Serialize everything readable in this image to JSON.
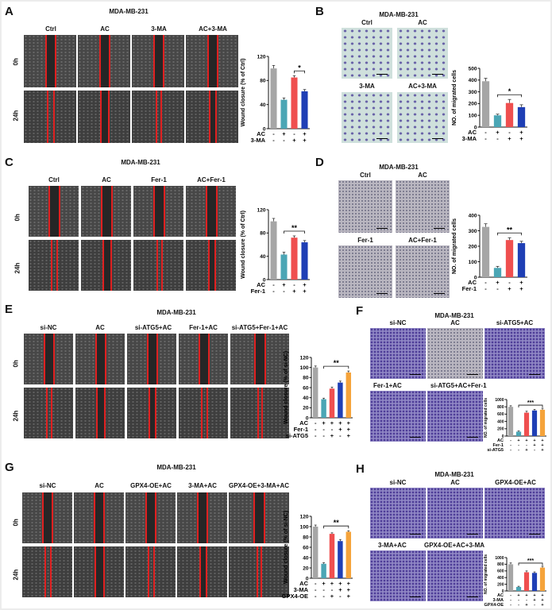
{
  "line_label": "MDA-MB-231",
  "row_labels": {
    "t0": "0h",
    "t24": "24h"
  },
  "panels": {
    "A": {
      "letter": "A",
      "headers": [
        "Ctrl",
        "AC",
        "3-MA",
        "AC+3-MA"
      ]
    },
    "B": {
      "letter": "B",
      "headers": [
        "Ctrl",
        "AC",
        "3-MA",
        "AC+3-MA"
      ]
    },
    "C": {
      "letter": "C",
      "headers": [
        "Ctrl",
        "AC",
        "Fer-1",
        "AC+Fer-1"
      ]
    },
    "D": {
      "letter": "D",
      "headers": [
        "Ctrl",
        "AC",
        "Fer-1",
        "AC+Fer-1"
      ]
    },
    "E": {
      "letter": "E",
      "headers": [
        "si-NC",
        "AC",
        "si-ATG5+AC",
        "Fer-1+AC",
        "si-ATG5+Fer-1+AC"
      ]
    },
    "F": {
      "letter": "F",
      "headers": [
        "si-NC",
        "AC",
        "si-ATG5+AC",
        "Fer-1+AC",
        "si-ATG5+AC+Fer-1"
      ]
    },
    "G": {
      "letter": "G",
      "headers": [
        "si-NC",
        "AC",
        "GPX4-OE+AC",
        "3-MA+AC",
        "GPX4-OE+3-MA+AC"
      ]
    },
    "H": {
      "letter": "H",
      "headers": [
        "si-NC",
        "AC",
        "GPX4-OE+AC",
        "3-MA+AC",
        "GPX4-OE+AC+3-MA"
      ]
    }
  },
  "chart_data": [
    {
      "id": "A",
      "type": "bar",
      "ylabel": "Wound closure (% of Ctrl)",
      "ylim": [
        0,
        120
      ],
      "yticks": [
        0,
        40,
        80,
        120
      ],
      "values": [
        100,
        48,
        85,
        62
      ],
      "errors": [
        5,
        3,
        3,
        3
      ],
      "colors": [
        "#a6a6a6",
        "#4ba6b5",
        "#ef4f4f",
        "#1f3fb5"
      ],
      "treatments": [
        {
          "label": "AC",
          "signs": [
            "-",
            "+",
            "-",
            "+"
          ]
        },
        {
          "label": "3-MA",
          "signs": [
            "-",
            "-",
            "+",
            "+"
          ]
        }
      ],
      "sig": {
        "from": 2,
        "to": 3,
        "label": "*"
      }
    },
    {
      "id": "B",
      "type": "bar",
      "ylabel": "NO. of migrated cells",
      "ylim": [
        0,
        500
      ],
      "yticks": [
        0,
        100,
        200,
        300,
        400,
        500
      ],
      "values": [
        390,
        100,
        205,
        170
      ],
      "errors": [
        25,
        10,
        30,
        20
      ],
      "colors": [
        "#a6a6a6",
        "#4ba6b5",
        "#ef4f4f",
        "#1f3fb5"
      ],
      "treatments": [
        {
          "label": "AC",
          "signs": [
            "-",
            "+",
            "-",
            "+"
          ]
        },
        {
          "label": "3-MA",
          "signs": [
            "-",
            "-",
            "+",
            "+"
          ]
        }
      ],
      "sig": {
        "from": 1,
        "to": 3,
        "label": "*"
      }
    },
    {
      "id": "C",
      "type": "bar",
      "ylabel": "Wound closure (% of Ctrl)",
      "ylim": [
        0,
        120
      ],
      "yticks": [
        0,
        40,
        80,
        120
      ],
      "values": [
        100,
        43,
        72,
        64
      ],
      "errors": [
        5,
        4,
        3,
        3
      ],
      "colors": [
        "#a6a6a6",
        "#4ba6b5",
        "#ef4f4f",
        "#1f3fb5"
      ],
      "treatments": [
        {
          "label": "AC",
          "signs": [
            "-",
            "+",
            "-",
            "+"
          ]
        },
        {
          "label": "Fer-1",
          "signs": [
            "-",
            "-",
            "+",
            "+"
          ]
        }
      ],
      "sig": {
        "from": 1,
        "to": 3,
        "label": "**"
      }
    },
    {
      "id": "D",
      "type": "bar",
      "ylabel": "NO. of migrated cells",
      "ylim": [
        0,
        400
      ],
      "yticks": [
        0,
        100,
        200,
        300,
        400
      ],
      "values": [
        325,
        60,
        240,
        220
      ],
      "errors": [
        20,
        10,
        15,
        12
      ],
      "colors": [
        "#a6a6a6",
        "#4ba6b5",
        "#ef4f4f",
        "#1f3fb5"
      ],
      "treatments": [
        {
          "label": "AC",
          "signs": [
            "-",
            "+",
            "-",
            "+"
          ]
        },
        {
          "label": "Fer-1",
          "signs": [
            "-",
            "-",
            "+",
            "+"
          ]
        }
      ],
      "sig": {
        "from": 1,
        "to": 3,
        "label": "**"
      }
    },
    {
      "id": "E",
      "type": "bar",
      "ylabel": "Wound closure (% of si-NC)",
      "ylim": [
        0,
        120
      ],
      "yticks": [
        0,
        20,
        40,
        60,
        80,
        100,
        120
      ],
      "values": [
        100,
        37,
        58,
        70,
        90
      ],
      "errors": [
        3,
        2,
        3,
        3,
        3
      ],
      "colors": [
        "#a6a6a6",
        "#4ba6b5",
        "#ef4f4f",
        "#1f3fb5",
        "#f5a33a"
      ],
      "treatments": [
        {
          "label": "AC",
          "signs": [
            "-",
            "+",
            "+",
            "+",
            "+"
          ]
        },
        {
          "label": "Fer-1",
          "signs": [
            "-",
            "-",
            "-",
            "+",
            "+"
          ]
        },
        {
          "label": "si-ATG5",
          "signs": [
            "-",
            "-",
            "+",
            "-",
            "+"
          ]
        }
      ],
      "sig": {
        "from": 1,
        "to": 4,
        "label": "**"
      }
    },
    {
      "id": "F",
      "type": "bar",
      "ylabel": "NO. of migrated cells",
      "ylim": [
        0,
        1000
      ],
      "yticks": [
        0,
        200,
        400,
        600,
        800,
        1000
      ],
      "values": [
        800,
        120,
        640,
        700,
        720
      ],
      "errors": [
        30,
        20,
        40,
        30,
        40
      ],
      "colors": [
        "#a6a6a6",
        "#4ba6b5",
        "#ef4f4f",
        "#1f3fb5",
        "#f5a33a"
      ],
      "treatments": [
        {
          "label": "AC",
          "signs": [
            "-",
            "+",
            "+",
            "+",
            "+"
          ]
        },
        {
          "label": "Fer-1",
          "signs": [
            "-",
            "-",
            "-",
            "+",
            "+"
          ]
        },
        {
          "label": "si-ATG5",
          "signs": [
            "-",
            "-",
            "+",
            "-",
            "+"
          ]
        }
      ],
      "sig": {
        "from": 1,
        "to": 4,
        "label": "***"
      }
    },
    {
      "id": "G",
      "type": "bar",
      "ylabel": "Wound closure (% of si-NC)",
      "ylim": [
        0,
        120
      ],
      "yticks": [
        0,
        20,
        40,
        60,
        80,
        100,
        120
      ],
      "values": [
        100,
        28,
        86,
        72,
        90
      ],
      "errors": [
        3,
        2,
        2,
        3,
        2
      ],
      "colors": [
        "#a6a6a6",
        "#4ba6b5",
        "#ef4f4f",
        "#1f3fb5",
        "#f5a33a"
      ],
      "treatments": [
        {
          "label": "AC",
          "signs": [
            "-",
            "+",
            "+",
            "+",
            "+"
          ]
        },
        {
          "label": "3-MA",
          "signs": [
            "-",
            "-",
            "-",
            "+",
            "+"
          ]
        },
        {
          "label": "GPX4-OE",
          "signs": [
            "-",
            "-",
            "+",
            "-",
            "+"
          ]
        }
      ],
      "sig": {
        "from": 1,
        "to": 4,
        "label": "**"
      }
    },
    {
      "id": "H",
      "type": "bar",
      "ylabel": "NO. of migrated cells",
      "ylim": [
        0,
        1000
      ],
      "yticks": [
        0,
        200,
        400,
        600,
        800,
        1000
      ],
      "values": [
        800,
        120,
        560,
        540,
        700
      ],
      "errors": [
        40,
        20,
        40,
        30,
        40
      ],
      "colors": [
        "#a6a6a6",
        "#4ba6b5",
        "#ef4f4f",
        "#1f3fb5",
        "#f5a33a"
      ],
      "treatments": [
        {
          "label": "AC",
          "signs": [
            "-",
            "+",
            "+",
            "+",
            "+"
          ]
        },
        {
          "label": "3-MA",
          "signs": [
            "-",
            "-",
            "-",
            "+",
            "+"
          ]
        },
        {
          "label": "GPX4-OE",
          "signs": [
            "-",
            "-",
            "+",
            "-",
            "+"
          ]
        }
      ],
      "sig": {
        "from": 1,
        "to": 4,
        "label": "***"
      }
    }
  ]
}
